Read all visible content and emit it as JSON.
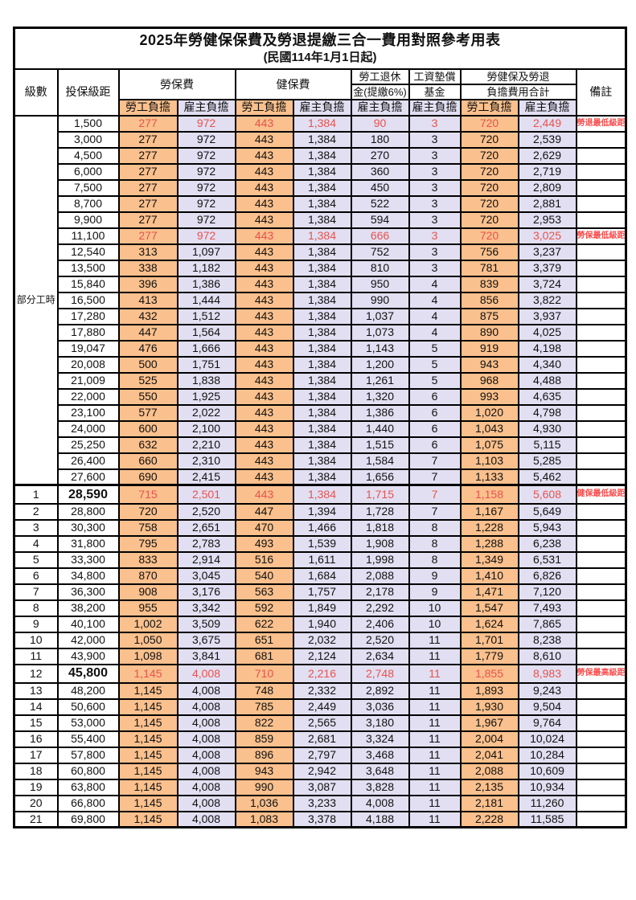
{
  "title": "2025年勞健保保費及勞退提繳三合一費用對照參考用表",
  "subtitle": "(民國114年1月1日起)",
  "columns": {
    "level": "級數",
    "bracket": "投保級距",
    "labor_insurance": "勞保費",
    "health_insurance": "健保費",
    "pension_line1": "勞工退休",
    "pension_line2": "金(提繳6%)",
    "wage_fund_line1": "工資墊償",
    "wage_fund_line2": "基金",
    "total_line1": "勞健保及勞退",
    "total_line2": "負擔費用合計",
    "remark": "備註",
    "employee_label": "勞工負擔",
    "employer_label": "雇主負擔"
  },
  "part_time_label": "部分工時",
  "part_time_row_count": 23,
  "colors": {
    "employee_bg": "#FAC08D",
    "employer_bg": "#E2DFF2",
    "value_red": "#E8524E",
    "remark_red": "#FB4B4B"
  },
  "rows": [
    {
      "level": "",
      "bracket": "1,500",
      "values": [
        "277",
        "972",
        "443",
        "1,384",
        "90",
        "3",
        "720",
        "2,449"
      ],
      "remark": "勞退最低級距",
      "red": true,
      "bold_bracket": false,
      "thick_top": false
    },
    {
      "level": "",
      "bracket": "3,000",
      "values": [
        "277",
        "972",
        "443",
        "1,384",
        "180",
        "3",
        "720",
        "2,539"
      ],
      "remark": "",
      "red": false,
      "bold_bracket": false,
      "thick_top": false
    },
    {
      "level": "",
      "bracket": "4,500",
      "values": [
        "277",
        "972",
        "443",
        "1,384",
        "270",
        "3",
        "720",
        "2,629"
      ],
      "remark": "",
      "red": false,
      "bold_bracket": false,
      "thick_top": false
    },
    {
      "level": "",
      "bracket": "6,000",
      "values": [
        "277",
        "972",
        "443",
        "1,384",
        "360",
        "3",
        "720",
        "2,719"
      ],
      "remark": "",
      "red": false,
      "bold_bracket": false,
      "thick_top": false
    },
    {
      "level": "",
      "bracket": "7,500",
      "values": [
        "277",
        "972",
        "443",
        "1,384",
        "450",
        "3",
        "720",
        "2,809"
      ],
      "remark": "",
      "red": false,
      "bold_bracket": false,
      "thick_top": false
    },
    {
      "level": "",
      "bracket": "8,700",
      "values": [
        "277",
        "972",
        "443",
        "1,384",
        "522",
        "3",
        "720",
        "2,881"
      ],
      "remark": "",
      "red": false,
      "bold_bracket": false,
      "thick_top": false
    },
    {
      "level": "",
      "bracket": "9,900",
      "values": [
        "277",
        "972",
        "443",
        "1,384",
        "594",
        "3",
        "720",
        "2,953"
      ],
      "remark": "",
      "red": false,
      "bold_bracket": false,
      "thick_top": false
    },
    {
      "level": "",
      "bracket": "11,100",
      "values": [
        "277",
        "972",
        "443",
        "1,384",
        "666",
        "3",
        "720",
        "3,025"
      ],
      "remark": "勞保最低級距",
      "red": true,
      "bold_bracket": false,
      "thick_top": false
    },
    {
      "level": "",
      "bracket": "12,540",
      "values": [
        "313",
        "1,097",
        "443",
        "1,384",
        "752",
        "3",
        "756",
        "3,237"
      ],
      "remark": "",
      "red": false,
      "bold_bracket": false,
      "thick_top": false
    },
    {
      "level": "",
      "bracket": "13,500",
      "values": [
        "338",
        "1,182",
        "443",
        "1,384",
        "810",
        "3",
        "781",
        "3,379"
      ],
      "remark": "",
      "red": false,
      "bold_bracket": false,
      "thick_top": false
    },
    {
      "level": "",
      "bracket": "15,840",
      "values": [
        "396",
        "1,386",
        "443",
        "1,384",
        "950",
        "4",
        "839",
        "3,724"
      ],
      "remark": "",
      "red": false,
      "bold_bracket": false,
      "thick_top": false
    },
    {
      "level": "",
      "bracket": "16,500",
      "values": [
        "413",
        "1,444",
        "443",
        "1,384",
        "990",
        "4",
        "856",
        "3,822"
      ],
      "remark": "",
      "red": false,
      "bold_bracket": false,
      "thick_top": false
    },
    {
      "level": "",
      "bracket": "17,280",
      "values": [
        "432",
        "1,512",
        "443",
        "1,384",
        "1,037",
        "4",
        "875",
        "3,937"
      ],
      "remark": "",
      "red": false,
      "bold_bracket": false,
      "thick_top": false
    },
    {
      "level": "",
      "bracket": "17,880",
      "values": [
        "447",
        "1,564",
        "443",
        "1,384",
        "1,073",
        "4",
        "890",
        "4,025"
      ],
      "remark": "",
      "red": false,
      "bold_bracket": false,
      "thick_top": false
    },
    {
      "level": "",
      "bracket": "19,047",
      "values": [
        "476",
        "1,666",
        "443",
        "1,384",
        "1,143",
        "5",
        "919",
        "4,198"
      ],
      "remark": "",
      "red": false,
      "bold_bracket": false,
      "thick_top": false
    },
    {
      "level": "",
      "bracket": "20,008",
      "values": [
        "500",
        "1,751",
        "443",
        "1,384",
        "1,200",
        "5",
        "943",
        "4,340"
      ],
      "remark": "",
      "red": false,
      "bold_bracket": false,
      "thick_top": false
    },
    {
      "level": "",
      "bracket": "21,009",
      "values": [
        "525",
        "1,838",
        "443",
        "1,384",
        "1,261",
        "5",
        "968",
        "4,488"
      ],
      "remark": "",
      "red": false,
      "bold_bracket": false,
      "thick_top": false
    },
    {
      "level": "",
      "bracket": "22,000",
      "values": [
        "550",
        "1,925",
        "443",
        "1,384",
        "1,320",
        "6",
        "993",
        "4,635"
      ],
      "remark": "",
      "red": false,
      "bold_bracket": false,
      "thick_top": false
    },
    {
      "level": "",
      "bracket": "23,100",
      "values": [
        "577",
        "2,022",
        "443",
        "1,384",
        "1,386",
        "6",
        "1,020",
        "4,798"
      ],
      "remark": "",
      "red": false,
      "bold_bracket": false,
      "thick_top": false
    },
    {
      "level": "",
      "bracket": "24,000",
      "values": [
        "600",
        "2,100",
        "443",
        "1,384",
        "1,440",
        "6",
        "1,043",
        "4,930"
      ],
      "remark": "",
      "red": false,
      "bold_bracket": false,
      "thick_top": false
    },
    {
      "level": "",
      "bracket": "25,250",
      "values": [
        "632",
        "2,210",
        "443",
        "1,384",
        "1,515",
        "6",
        "1,075",
        "5,115"
      ],
      "remark": "",
      "red": false,
      "bold_bracket": false,
      "thick_top": false
    },
    {
      "level": "",
      "bracket": "26,400",
      "values": [
        "660",
        "2,310",
        "443",
        "1,384",
        "1,584",
        "7",
        "1,103",
        "5,285"
      ],
      "remark": "",
      "red": false,
      "bold_bracket": false,
      "thick_top": false
    },
    {
      "level": "",
      "bracket": "27,600",
      "values": [
        "690",
        "2,415",
        "443",
        "1,384",
        "1,656",
        "7",
        "1,133",
        "5,462"
      ],
      "remark": "",
      "red": false,
      "bold_bracket": false,
      "thick_top": false
    },
    {
      "level": "1",
      "bracket": "28,590",
      "values": [
        "715",
        "2,501",
        "443",
        "1,384",
        "1,715",
        "7",
        "1,158",
        "5,608"
      ],
      "remark": "健保最低級距",
      "red": true,
      "bold_bracket": true,
      "thick_top": true
    },
    {
      "level": "2",
      "bracket": "28,800",
      "values": [
        "720",
        "2,520",
        "447",
        "1,394",
        "1,728",
        "7",
        "1,167",
        "5,649"
      ],
      "remark": "",
      "red": false,
      "bold_bracket": false,
      "thick_top": false
    },
    {
      "level": "3",
      "bracket": "30,300",
      "values": [
        "758",
        "2,651",
        "470",
        "1,466",
        "1,818",
        "8",
        "1,228",
        "5,943"
      ],
      "remark": "",
      "red": false,
      "bold_bracket": false,
      "thick_top": false
    },
    {
      "level": "4",
      "bracket": "31,800",
      "values": [
        "795",
        "2,783",
        "493",
        "1,539",
        "1,908",
        "8",
        "1,288",
        "6,238"
      ],
      "remark": "",
      "red": false,
      "bold_bracket": false,
      "thick_top": false
    },
    {
      "level": "5",
      "bracket": "33,300",
      "values": [
        "833",
        "2,914",
        "516",
        "1,611",
        "1,998",
        "8",
        "1,349",
        "6,531"
      ],
      "remark": "",
      "red": false,
      "bold_bracket": false,
      "thick_top": false
    },
    {
      "level": "6",
      "bracket": "34,800",
      "values": [
        "870",
        "3,045",
        "540",
        "1,684",
        "2,088",
        "9",
        "1,410",
        "6,826"
      ],
      "remark": "",
      "red": false,
      "bold_bracket": false,
      "thick_top": false
    },
    {
      "level": "7",
      "bracket": "36,300",
      "values": [
        "908",
        "3,176",
        "563",
        "1,757",
        "2,178",
        "9",
        "1,471",
        "7,120"
      ],
      "remark": "",
      "red": false,
      "bold_bracket": false,
      "thick_top": false
    },
    {
      "level": "8",
      "bracket": "38,200",
      "values": [
        "955",
        "3,342",
        "592",
        "1,849",
        "2,292",
        "10",
        "1,547",
        "7,493"
      ],
      "remark": "",
      "red": false,
      "bold_bracket": false,
      "thick_top": false
    },
    {
      "level": "9",
      "bracket": "40,100",
      "values": [
        "1,002",
        "3,509",
        "622",
        "1,940",
        "2,406",
        "10",
        "1,624",
        "7,865"
      ],
      "remark": "",
      "red": false,
      "bold_bracket": false,
      "thick_top": false
    },
    {
      "level": "10",
      "bracket": "42,000",
      "values": [
        "1,050",
        "3,675",
        "651",
        "2,032",
        "2,520",
        "11",
        "1,701",
        "8,238"
      ],
      "remark": "",
      "red": false,
      "bold_bracket": false,
      "thick_top": false
    },
    {
      "level": "11",
      "bracket": "43,900",
      "values": [
        "1,098",
        "3,841",
        "681",
        "2,124",
        "2,634",
        "11",
        "1,779",
        "8,610"
      ],
      "remark": "",
      "red": false,
      "bold_bracket": false,
      "thick_top": false
    },
    {
      "level": "12",
      "bracket": "45,800",
      "values": [
        "1,145",
        "4,008",
        "710",
        "2,216",
        "2,748",
        "11",
        "1,855",
        "8,983"
      ],
      "remark": "勞保最高級距",
      "red": true,
      "bold_bracket": true,
      "thick_top": false
    },
    {
      "level": "13",
      "bracket": "48,200",
      "values": [
        "1,145",
        "4,008",
        "748",
        "2,332",
        "2,892",
        "11",
        "1,893",
        "9,243"
      ],
      "remark": "",
      "red": false,
      "bold_bracket": false,
      "thick_top": false
    },
    {
      "level": "14",
      "bracket": "50,600",
      "values": [
        "1,145",
        "4,008",
        "785",
        "2,449",
        "3,036",
        "11",
        "1,930",
        "9,504"
      ],
      "remark": "",
      "red": false,
      "bold_bracket": false,
      "thick_top": false
    },
    {
      "level": "15",
      "bracket": "53,000",
      "values": [
        "1,145",
        "4,008",
        "822",
        "2,565",
        "3,180",
        "11",
        "1,967",
        "9,764"
      ],
      "remark": "",
      "red": false,
      "bold_bracket": false,
      "thick_top": false
    },
    {
      "level": "16",
      "bracket": "55,400",
      "values": [
        "1,145",
        "4,008",
        "859",
        "2,681",
        "3,324",
        "11",
        "2,004",
        "10,024"
      ],
      "remark": "",
      "red": false,
      "bold_bracket": false,
      "thick_top": false
    },
    {
      "level": "17",
      "bracket": "57,800",
      "values": [
        "1,145",
        "4,008",
        "896",
        "2,797",
        "3,468",
        "11",
        "2,041",
        "10,284"
      ],
      "remark": "",
      "red": false,
      "bold_bracket": false,
      "thick_top": false
    },
    {
      "level": "18",
      "bracket": "60,800",
      "values": [
        "1,145",
        "4,008",
        "943",
        "2,942",
        "3,648",
        "11",
        "2,088",
        "10,609"
      ],
      "remark": "",
      "red": false,
      "bold_bracket": false,
      "thick_top": false
    },
    {
      "level": "19",
      "bracket": "63,800",
      "values": [
        "1,145",
        "4,008",
        "990",
        "3,087",
        "3,828",
        "11",
        "2,135",
        "10,934"
      ],
      "remark": "",
      "red": false,
      "bold_bracket": false,
      "thick_top": false
    },
    {
      "level": "20",
      "bracket": "66,800",
      "values": [
        "1,145",
        "4,008",
        "1,036",
        "3,233",
        "4,008",
        "11",
        "2,181",
        "11,260"
      ],
      "remark": "",
      "red": false,
      "bold_bracket": false,
      "thick_top": false
    },
    {
      "level": "21",
      "bracket": "69,800",
      "values": [
        "1,145",
        "4,008",
        "1,083",
        "3,378",
        "4,188",
        "11",
        "2,228",
        "11,585"
      ],
      "remark": "",
      "red": false,
      "bold_bracket": false,
      "thick_top": false
    }
  ]
}
